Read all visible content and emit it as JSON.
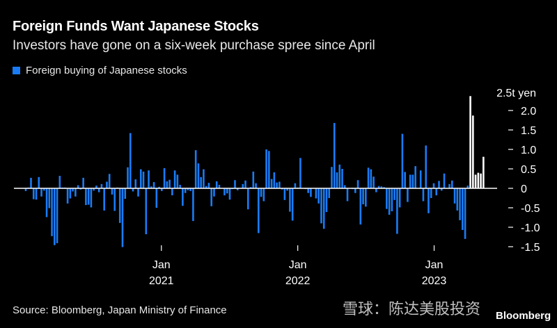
{
  "title": "Foreign Funds Want Japanese Stocks",
  "subtitle": "Investors have gone on a six-week purchase spree since April",
  "source": "Source: Bloomberg, Japan Ministry of Finance",
  "watermark": "雪球：陈达美股投资",
  "logo": "Bloomberg",
  "chart_data": {
    "type": "bar",
    "legend": [
      {
        "name": "Foreign buying of Japanese stocks",
        "color": "#1a7cf5"
      }
    ],
    "legend_placement": "top-left",
    "highlight_color": "#ffffff",
    "highlight_from": "2023-04-08",
    "ylabel": "2.5t yen",
    "ylim": [
      -1.5,
      2.5
    ],
    "yticks": [
      "2.0",
      "1.5",
      "1.0",
      "0.5",
      "0",
      "-0.5",
      "-1.0",
      "-1.5"
    ],
    "ytick_values": [
      2.0,
      1.5,
      1.0,
      0.5,
      0,
      -0.5,
      -1.0,
      -1.5
    ],
    "xticks": [
      {
        "date": "2021-01-01",
        "month": "Jan",
        "year": "2021"
      },
      {
        "date": "2022-01-01",
        "month": "Jan",
        "year": "2022"
      },
      {
        "date": "2023-01-01",
        "month": "Jan",
        "year": "2023"
      }
    ],
    "grid": false,
    "x": [
      "2020-01-04",
      "2020-01-11",
      "2020-01-18",
      "2020-01-25",
      "2020-02-01",
      "2020-02-08",
      "2020-02-15",
      "2020-02-22",
      "2020-02-29",
      "2020-03-07",
      "2020-03-14",
      "2020-03-21",
      "2020-03-28",
      "2020-04-04",
      "2020-04-11",
      "2020-04-18",
      "2020-04-25",
      "2020-05-02",
      "2020-05-09",
      "2020-05-16",
      "2020-05-23",
      "2020-05-30",
      "2020-06-06",
      "2020-06-13",
      "2020-06-20",
      "2020-06-27",
      "2020-07-04",
      "2020-07-11",
      "2020-07-18",
      "2020-07-25",
      "2020-08-01",
      "2020-08-08",
      "2020-08-15",
      "2020-08-22",
      "2020-08-29",
      "2020-09-05",
      "2020-09-12",
      "2020-09-19",
      "2020-09-26",
      "2020-10-03",
      "2020-10-10",
      "2020-10-17",
      "2020-10-24",
      "2020-10-31",
      "2020-11-07",
      "2020-11-14",
      "2020-11-21",
      "2020-11-28",
      "2020-12-05",
      "2020-12-12",
      "2020-12-19",
      "2020-12-26",
      "2021-01-02",
      "2021-01-09",
      "2021-01-16",
      "2021-01-23",
      "2021-01-30",
      "2021-02-06",
      "2021-02-13",
      "2021-02-20",
      "2021-02-27",
      "2021-03-06",
      "2021-03-13",
      "2021-03-20",
      "2021-03-27",
      "2021-04-03",
      "2021-04-10",
      "2021-04-17",
      "2021-04-24",
      "2021-05-01",
      "2021-05-08",
      "2021-05-15",
      "2021-05-22",
      "2021-05-29",
      "2021-06-05",
      "2021-06-12",
      "2021-06-19",
      "2021-06-26",
      "2021-07-03",
      "2021-07-10",
      "2021-07-17",
      "2021-07-24",
      "2021-07-31",
      "2021-08-07",
      "2021-08-14",
      "2021-08-21",
      "2021-08-28",
      "2021-09-04",
      "2021-09-11",
      "2021-09-18",
      "2021-09-25",
      "2021-10-02",
      "2021-10-09",
      "2021-10-16",
      "2021-10-23",
      "2021-10-30",
      "2021-11-06",
      "2021-11-13",
      "2021-11-20",
      "2021-11-27",
      "2021-12-04",
      "2021-12-11",
      "2021-12-18",
      "2021-12-25",
      "2022-01-01",
      "2022-01-08",
      "2022-01-15",
      "2022-01-22",
      "2022-01-29",
      "2022-02-05",
      "2022-02-12",
      "2022-02-19",
      "2022-02-26",
      "2022-03-05",
      "2022-03-12",
      "2022-03-19",
      "2022-03-26",
      "2022-04-02",
      "2022-04-09",
      "2022-04-16",
      "2022-04-23",
      "2022-04-30",
      "2022-05-07",
      "2022-05-14",
      "2022-05-21",
      "2022-05-28",
      "2022-06-04",
      "2022-06-11",
      "2022-06-18",
      "2022-06-25",
      "2022-07-02",
      "2022-07-09",
      "2022-07-16",
      "2022-07-23",
      "2022-07-30",
      "2022-08-06",
      "2022-08-13",
      "2022-08-20",
      "2022-08-27",
      "2022-09-03",
      "2022-09-10",
      "2022-09-17",
      "2022-09-24",
      "2022-10-01",
      "2022-10-08",
      "2022-10-15",
      "2022-10-22",
      "2022-10-29",
      "2022-11-05",
      "2022-11-12",
      "2022-11-19",
      "2022-11-26",
      "2022-12-03",
      "2022-12-10",
      "2022-12-17",
      "2022-12-24",
      "2022-12-31",
      "2023-01-07",
      "2023-01-14",
      "2023-01-21",
      "2023-01-28",
      "2023-02-04",
      "2023-02-11",
      "2023-02-18",
      "2023-02-25",
      "2023-03-04",
      "2023-03-11",
      "2023-03-18",
      "2023-03-25",
      "2023-04-01",
      "2023-04-08",
      "2023-04-15",
      "2023-04-22",
      "2023-04-29",
      "2023-05-06",
      "2023-05-13"
    ],
    "values": [
      -0.07,
      0.02,
      0.27,
      -0.28,
      -0.29,
      0.29,
      -0.21,
      -0.06,
      -0.74,
      -0.51,
      -1.23,
      -1.46,
      -1.41,
      0.32,
      0.02,
      0.02,
      -0.39,
      -0.26,
      -0.08,
      -0.21,
      0.08,
      -0.03,
      0.27,
      -0.43,
      -0.42,
      -0.49,
      -0.06,
      0.07,
      -0.1,
      0.11,
      -0.57,
      0.17,
      0.37,
      -0.16,
      -0.58,
      0.02,
      -0.89,
      -1.51,
      -0.27,
      0.54,
      1.42,
      -0.08,
      0.23,
      -0.21,
      0.49,
      0.43,
      -1.18,
      0.46,
      0.05,
      0.16,
      -0.5,
      0.04,
      -0.07,
      0.52,
      0.18,
      0.22,
      -0.18,
      0.46,
      0.35,
      0.09,
      -0.45,
      -0.12,
      -0.05,
      -0.07,
      -0.84,
      0.98,
      0.64,
      0.29,
      0.49,
      0.06,
      0.14,
      -0.46,
      -0.21,
      0.18,
      0.09,
      -0.01,
      -0.18,
      -0.13,
      -0.29,
      -0.02,
      0.21,
      -0.05,
      0.01,
      0.11,
      0.2,
      -0.54,
      0.03,
      0.43,
      0.13,
      -1.15,
      -0.22,
      -0.33,
      1.0,
      0.96,
      0.24,
      0.41,
      0.15,
      0.17,
      -0.03,
      -0.3,
      -0.06,
      -0.6,
      -0.83,
      0.13,
      0.02,
      0.78,
      -0.01,
      -0.02,
      -0.12,
      -0.22,
      -0.01,
      -0.26,
      -0.39,
      -0.9,
      -1.04,
      -0.61,
      -0.25,
      0.55,
      1.68,
      0.41,
      0.61,
      0.5,
      0.08,
      -0.33,
      -0.01,
      -0.02,
      -0.12,
      0.21,
      -0.93,
      -0.41,
      -0.47,
      0.53,
      0.49,
      0.3,
      -0.1,
      0.06,
      0.05,
      0.03,
      -0.53,
      -0.68,
      -0.59,
      -0.3,
      -1.17,
      -0.49,
      1.4,
      0.42,
      -0.35,
      0.35,
      0.35,
      0.57,
      0.01,
      0.46,
      -0.33,
      1.1,
      -0.64,
      -0.25,
      0.13,
      -0.18,
      0.19,
      -0.06,
      0.38,
      0.01,
      0.11,
      0.2,
      -0.39,
      -0.57,
      -0.82,
      -1.07,
      -1.3,
      0.07,
      2.37,
      1.87,
      0.35,
      0.4,
      0.38,
      0.81
    ]
  }
}
